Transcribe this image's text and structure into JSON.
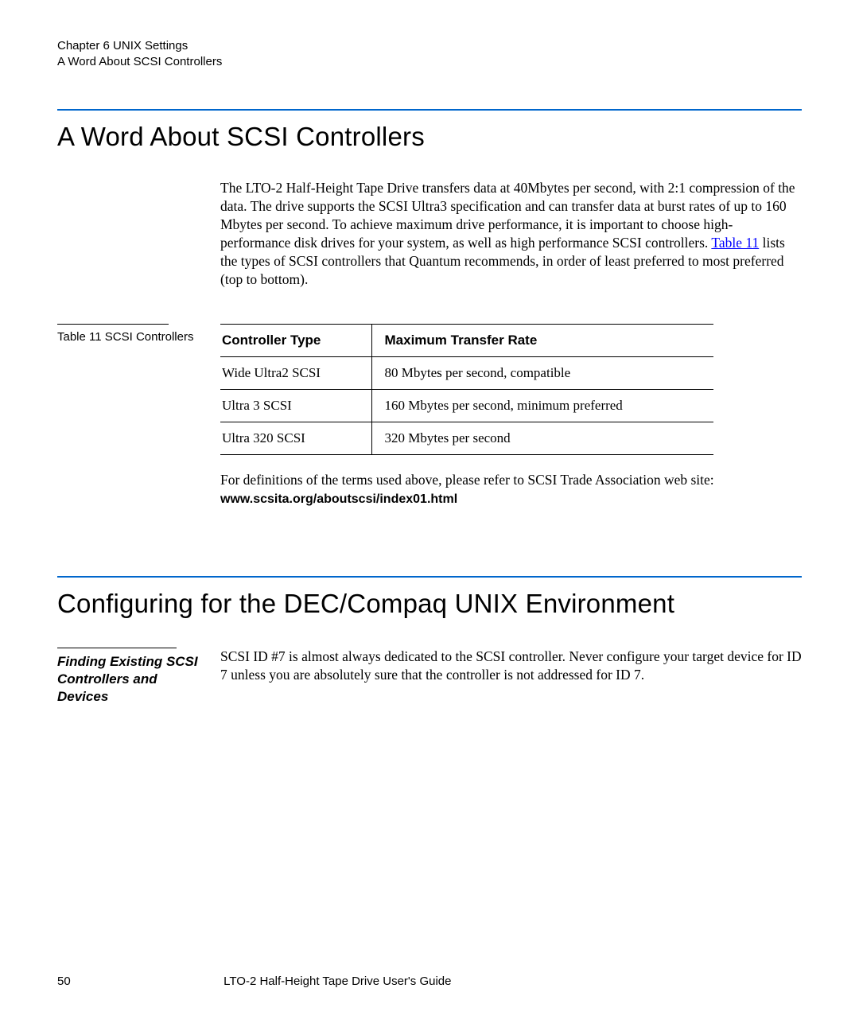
{
  "colors": {
    "rule_blue": "#0066cc",
    "link_blue": "#0000ff",
    "text": "#000000",
    "background": "#ffffff"
  },
  "header": {
    "line1": "Chapter 6  UNIX Settings",
    "line2": "A Word About SCSI Controllers"
  },
  "section1": {
    "title": "A Word About SCSI Controllers",
    "paragraph_pre": "The LTO-2 Half-Height Tape Drive transfers data at 40Mbytes per second, with 2:1 compression of the data. The drive supports the SCSI Ultra3 specification and can transfer data at burst rates of up to 160 Mbytes per second. To achieve maximum drive performance, it is important to choose high-performance disk drives for your system, as well as high performance SCSI controllers. ",
    "paragraph_link": "Table 11",
    "paragraph_post": " lists the types of SCSI controllers that Quantum recommends, in order of least preferred to most preferred (top to bottom).",
    "table_caption": "Table 11   SCSI Controllers",
    "table": {
      "headers": {
        "col1": "Controller Type",
        "col2": "Maximum Transfer Rate"
      },
      "rows": [
        {
          "type": "Wide Ultra2 SCSI",
          "rate": "80 Mbytes per second, compatible"
        },
        {
          "type": "Ultra 3 SCSI",
          "rate": "160 Mbytes per second, minimum preferred"
        },
        {
          "type": "Ultra 320 SCSI",
          "rate": "320 Mbytes per second"
        }
      ]
    },
    "after_table_text": "For definitions of the terms used above, please refer to SCSI Trade Association web site: ",
    "after_table_url": "www.scsita.org/aboutscsi/index01.html"
  },
  "section2": {
    "title": "Configuring for the DEC/Compaq UNIX Environment",
    "sub_heading": "Finding Existing SCSI Controllers and Devices",
    "sub_body": "SCSI ID #7 is almost always dedicated to the SCSI controller. Never configure your target device for ID 7 unless you are absolutely sure that the controller is not addressed for ID 7."
  },
  "footer": {
    "page": "50",
    "title": "LTO-2 Half-Height Tape Drive User's Guide"
  }
}
